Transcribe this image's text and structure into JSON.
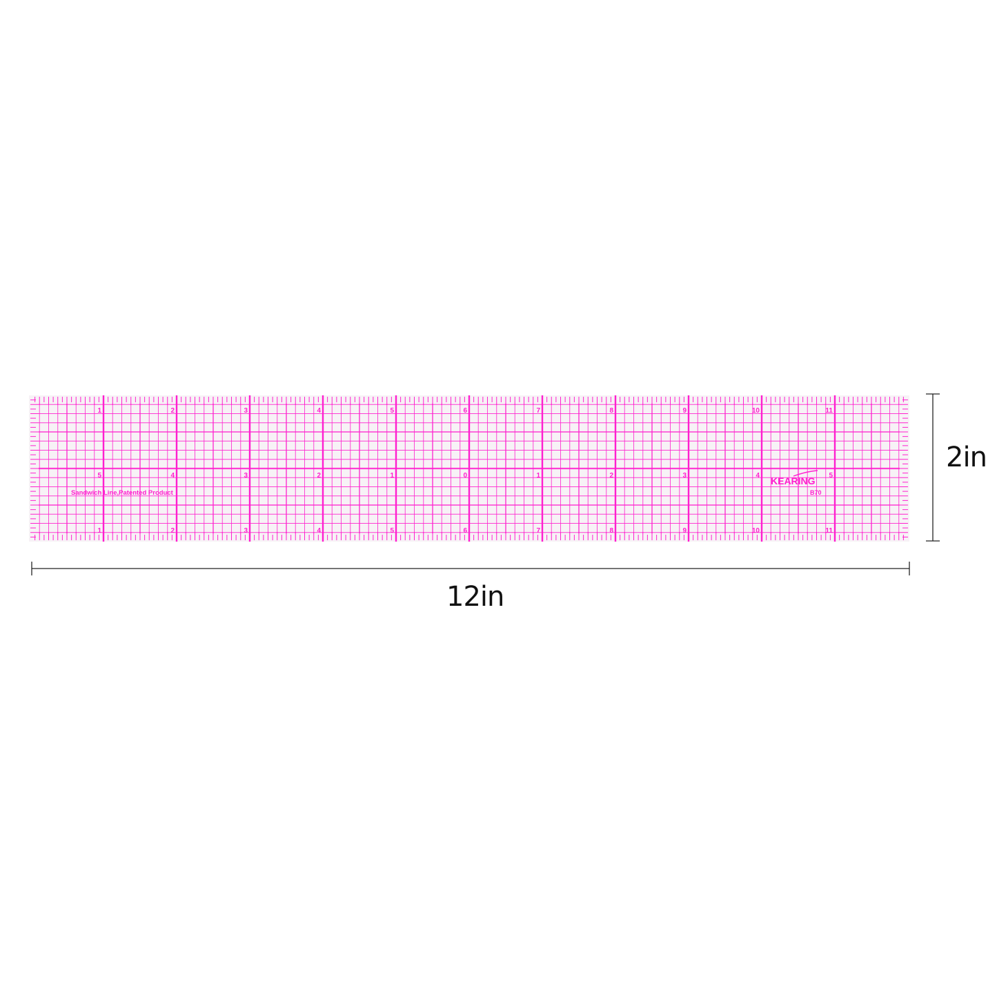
{
  "product": {
    "brand": "KEARING",
    "model": "B70",
    "imprint": "Sandwich Line,Patented Product",
    "length_in": 12,
    "width_in": 2,
    "grid_division_in": 0.125,
    "edge_tick_division_in": 0.0625,
    "top_numbers": [
      "1",
      "2",
      "3",
      "4",
      "5",
      "6",
      "7",
      "8",
      "9",
      "10",
      "11"
    ],
    "center_numbers": [
      "5",
      "4",
      "3",
      "2",
      "1",
      "0",
      "1",
      "2",
      "3",
      "4",
      "5"
    ],
    "bottom_numbers": [
      "1",
      "2",
      "3",
      "4",
      "5",
      "6",
      "7",
      "8",
      "9",
      "10",
      "11"
    ]
  },
  "dimensions": {
    "length_label": "12in",
    "width_label": "2in"
  },
  "colors": {
    "grid": "#ff1fcf",
    "ruler_bg": "#f7f2f6",
    "dimension_line": "#222222"
  }
}
